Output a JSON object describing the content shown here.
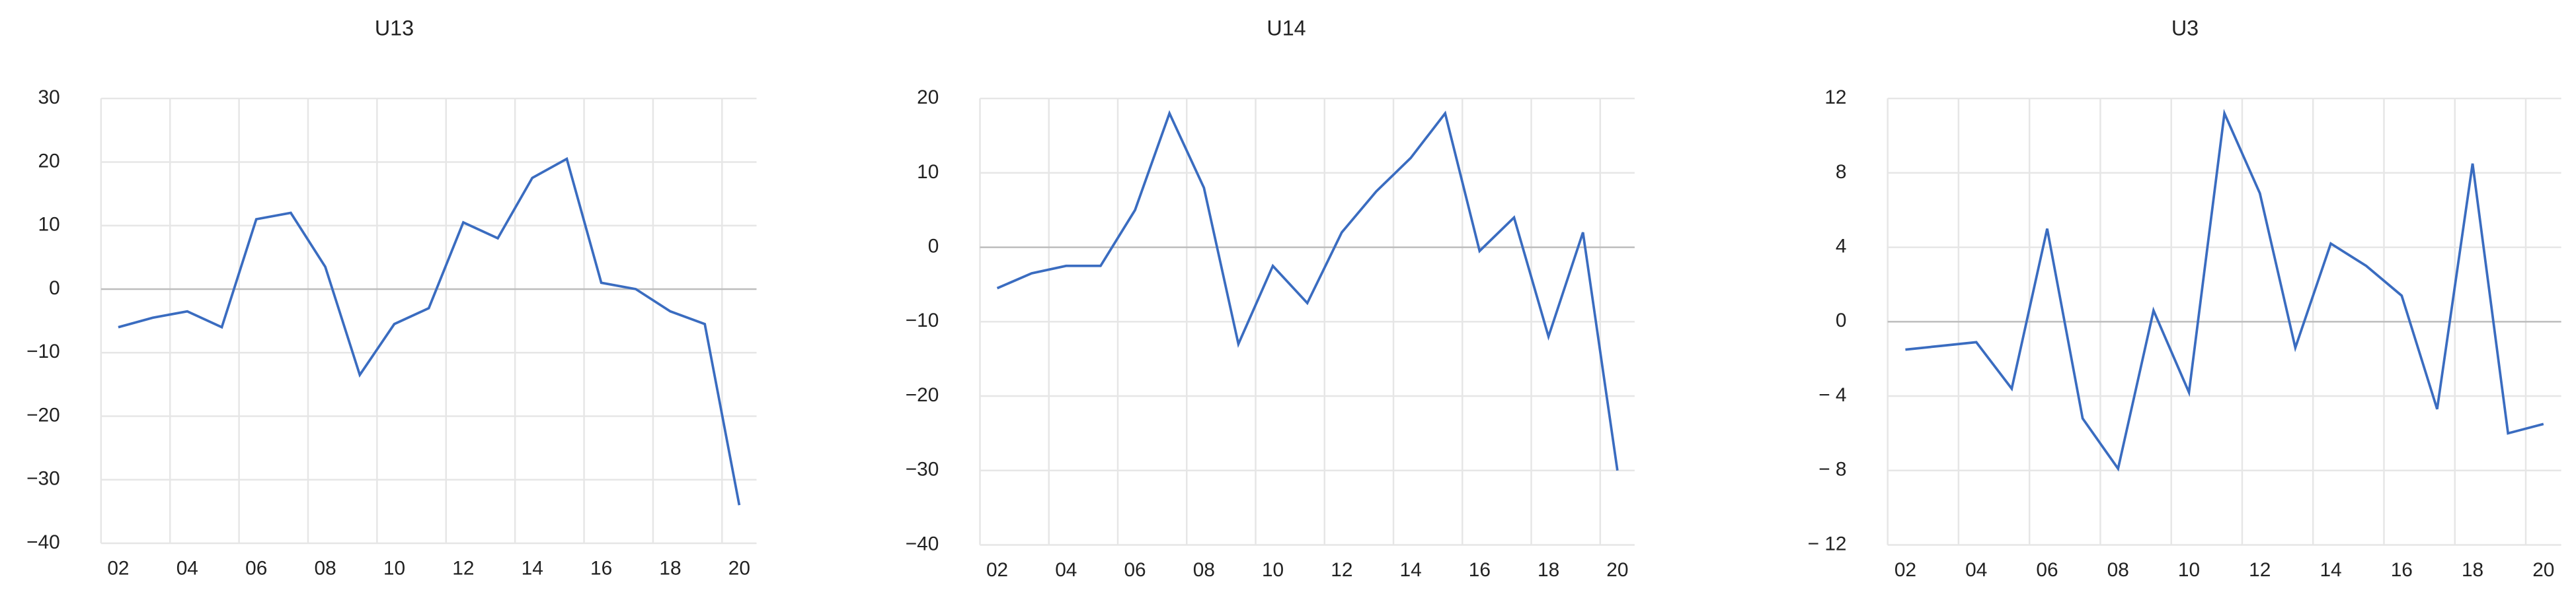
{
  "chart_data": [
    {
      "type": "line",
      "title": "U13",
      "categories": [
        "02",
        null,
        "04",
        null,
        "06",
        null,
        "08",
        null,
        "10",
        null,
        "12",
        null,
        "14",
        null,
        "16",
        null,
        "18",
        null,
        "20"
      ],
      "values": [
        -6,
        -4.5,
        -3.5,
        -6,
        11,
        12,
        3.5,
        -13.5,
        -5.5,
        -3,
        10.5,
        8,
        17.5,
        20.5,
        1,
        0,
        -3.5,
        -5.5,
        -34
      ],
      "color": "#3a6cc0",
      "ylim": [
        -40,
        30
      ],
      "yticks": [
        {
          "value": -40,
          "label": "−40"
        },
        {
          "value": -30,
          "label": "−30"
        },
        {
          "value": -20,
          "label": "−20"
        },
        {
          "value": -10,
          "label": "−10"
        },
        0,
        10,
        20,
        30
      ],
      "grid": true
    },
    {
      "type": "line",
      "title": "U14",
      "categories": [
        "02",
        null,
        "04",
        null,
        "06",
        null,
        "08",
        null,
        "10",
        null,
        "12",
        null,
        "14",
        null,
        "16",
        null,
        "18",
        null,
        "20"
      ],
      "values": [
        -5.5,
        -3.5,
        -2.5,
        -2.5,
        5,
        18,
        8,
        -13,
        -2.5,
        -7.5,
        2,
        7.5,
        12,
        18,
        -0.5,
        4,
        -12,
        2,
        -30
      ],
      "color": "#3a6cc0",
      "ylim": [
        -40,
        20
      ],
      "yticks": [
        {
          "value": -40,
          "label": "−40"
        },
        {
          "value": -30,
          "label": "−30"
        },
        {
          "value": -20,
          "label": "−20"
        },
        {
          "value": -10,
          "label": "−10"
        },
        0,
        10,
        20
      ],
      "grid": true
    },
    {
      "type": "line",
      "title": "U3",
      "categories": [
        "02",
        null,
        "04",
        null,
        "06",
        null,
        "08",
        null,
        "10",
        null,
        "12",
        null,
        "14",
        null,
        "16",
        null,
        "18",
        null,
        "20"
      ],
      "values": [
        -1.5,
        -1.3,
        -1.1,
        -3.6,
        5,
        -5.2,
        -7.9,
        0.6,
        -3.8,
        11.2,
        6.9,
        -1.4,
        4.2,
        3,
        1.4,
        -4.7,
        8.5,
        -6,
        -5.5
      ],
      "color": "#3a6cc0",
      "ylim": [
        -12,
        12
      ],
      "yticks": [
        {
          "value": -12,
          "label": "− 12"
        },
        {
          "value": -8,
          "label": "− 8"
        },
        {
          "value": -4,
          "label": "− 4"
        },
        0,
        4,
        8,
        12
      ],
      "grid": true
    }
  ]
}
